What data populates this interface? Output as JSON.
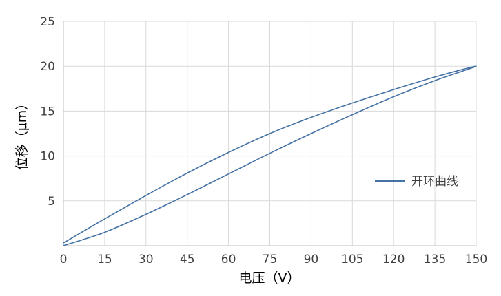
{
  "chart_data": {
    "type": "line",
    "xlabel": "电压（V）",
    "ylabel": "位移（μm）",
    "xlim": [
      0,
      150
    ],
    "ylim": [
      0,
      25
    ],
    "xticks": [
      0,
      15,
      30,
      45,
      60,
      75,
      90,
      105,
      120,
      135,
      150
    ],
    "yticks": [
      5,
      10,
      15,
      20,
      25
    ],
    "grid": true,
    "legend_position": "right",
    "line_color": "#4472a4",
    "grid_color": "#d9d9d9",
    "series": [
      {
        "name": "开环曲线",
        "points": [
          [
            0,
            0.3
          ],
          [
            15,
            3.0
          ],
          [
            30,
            5.6
          ],
          [
            45,
            8.1
          ],
          [
            60,
            10.4
          ],
          [
            75,
            12.5
          ],
          [
            90,
            14.3
          ],
          [
            105,
            15.9
          ],
          [
            120,
            17.4
          ],
          [
            135,
            18.8
          ],
          [
            150,
            20.0
          ],
          [
            135,
            18.4
          ],
          [
            120,
            16.6
          ],
          [
            105,
            14.6
          ],
          [
            90,
            12.5
          ],
          [
            75,
            10.3
          ],
          [
            60,
            8.0
          ],
          [
            45,
            5.7
          ],
          [
            30,
            3.5
          ],
          [
            15,
            1.5
          ],
          [
            0,
            0.0
          ]
        ]
      }
    ]
  }
}
